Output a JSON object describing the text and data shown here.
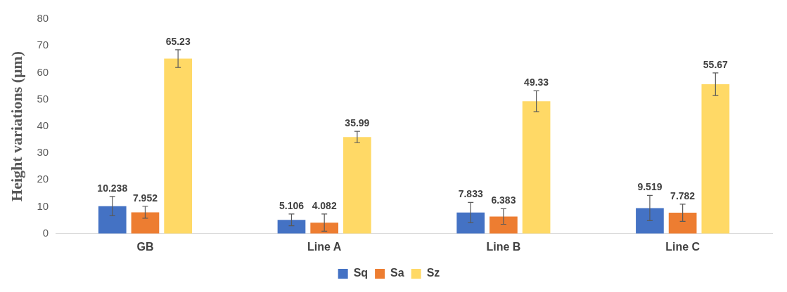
{
  "chart_data": {
    "type": "bar",
    "ylabel": "Height variations (μm)",
    "categories": [
      "GB",
      "Line A",
      "Line B",
      "Line C"
    ],
    "series": [
      {
        "name": "Sq",
        "color": "#4472c4",
        "values": [
          10.238,
          5.106,
          7.833,
          9.519
        ],
        "errors": [
          3.6,
          2.2,
          3.8,
          4.7
        ]
      },
      {
        "name": "Sa",
        "color": "#ed7d31",
        "values": [
          7.952,
          4.082,
          6.383,
          7.782
        ],
        "errors": [
          2.2,
          3.2,
          2.9,
          3.2
        ]
      },
      {
        "name": "Sz",
        "color": "#ffd966",
        "values": [
          65.23,
          35.99,
          49.33,
          55.67
        ],
        "errors": [
          3.3,
          2.1,
          3.9,
          4.2
        ]
      }
    ],
    "ylim": [
      0,
      80
    ],
    "yticks": [
      0,
      10,
      20,
      30,
      40,
      50,
      60,
      70,
      80
    ],
    "grid": false,
    "legend": "bottom",
    "data_labels": true
  }
}
